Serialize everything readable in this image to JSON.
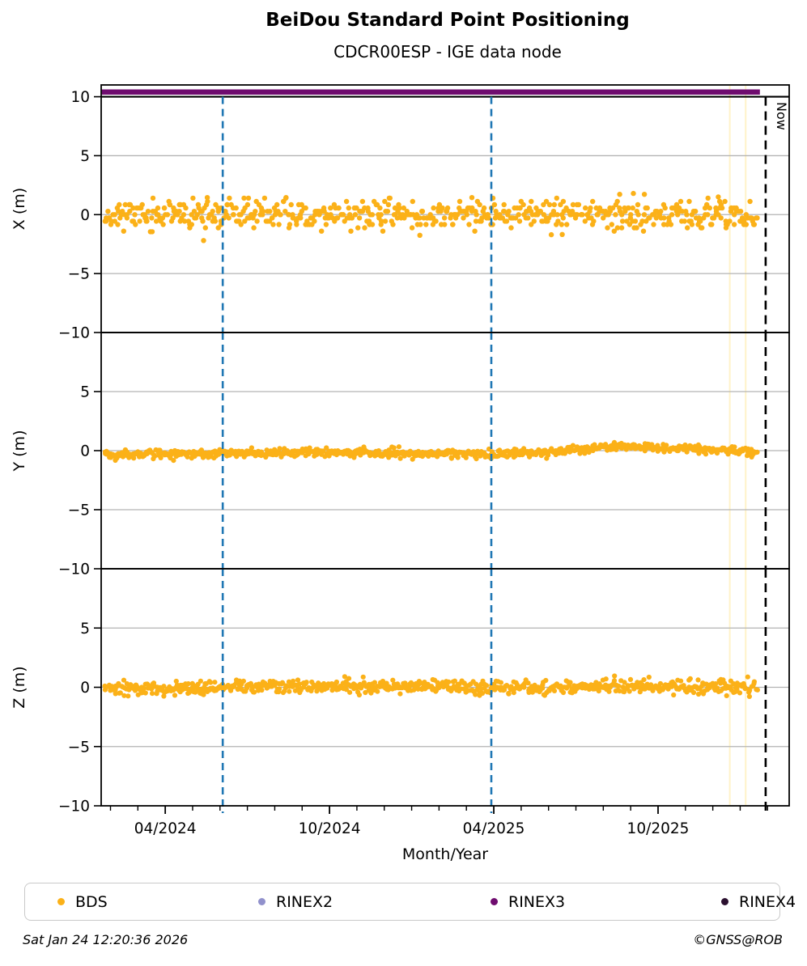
{
  "header": {
    "title": "BeiDou Standard Point Positioning",
    "subtitle": "CDCR00ESP - IGE data node"
  },
  "footer": {
    "timestamp": "Sat Jan 24 12:20:36 2026",
    "credit": "©GNSS@ROB"
  },
  "legend": {
    "items": [
      {
        "label": "BDS",
        "color": "#FBB118"
      },
      {
        "label": "RINEX2",
        "color": "#9191CC"
      },
      {
        "label": "RINEX3",
        "color": "#6F0C6F"
      },
      {
        "label": "RINEX4",
        "color": "#2B1030"
      }
    ]
  },
  "chart_data": {
    "type": "scatter",
    "title": "BeiDou Standard Point Positioning",
    "subtitle": "CDCR00ESP - IGE data node",
    "xlabel": "Month/Year",
    "x_axis": {
      "unit": "months since 2024-01-01",
      "min": 0.66,
      "max": 25.79,
      "major_ticks": [
        {
          "m": 3,
          "label": "04/2024"
        },
        {
          "m": 9,
          "label": "10/2024"
        },
        {
          "m": 15,
          "label": "04/2025"
        },
        {
          "m": 21,
          "label": "10/2025"
        }
      ],
      "minor_tick_step": 1
    },
    "styles": {
      "grid_color": "#B3B3B3",
      "frame_color": "#000000"
    },
    "subplots": [
      {
        "ylabel": "X (m)",
        "ylim": [
          -10,
          11
        ],
        "yticks": [
          {
            "v": 10,
            "label": "10"
          },
          {
            "v": 5,
            "label": "5"
          },
          {
            "v": 0,
            "label": "0"
          },
          {
            "v": -5,
            "label": "−5"
          },
          {
            "v": -10,
            "label": "−10"
          }
        ],
        "gridlines": [
          5,
          0,
          -5
        ],
        "separator_line_y": 10,
        "availability_band": {
          "series": "RINEX3",
          "y": 10.4,
          "x_start": 0.68,
          "x_end": 24.72,
          "color": "#6F0C6F",
          "thickness": 6.5
        },
        "scatter": {
          "series": "BDS",
          "color": "#FBB118",
          "point_radius": 3.2,
          "count": 640,
          "x_start": 0.8,
          "x_end": 24.6,
          "seed": 11,
          "trend": [
            [
              0.8,
              0
            ],
            [
              24.6,
              0
            ]
          ],
          "spread": 0.6,
          "quantize": 0.28,
          "clamp": [
            -1.45,
            1.45
          ],
          "outliers": [
            [
              4.4,
              -2.2
            ],
            [
              12.3,
              -1.75
            ],
            [
              17.1,
              -1.7
            ],
            [
              17.5,
              -1.68
            ],
            [
              19.6,
              1.72
            ],
            [
              20.1,
              1.8
            ],
            [
              20.5,
              1.72
            ],
            [
              23.2,
              1.5
            ]
          ]
        }
      },
      {
        "ylabel": "Y (m)",
        "ylim": [
          -10,
          10
        ],
        "yticks": [
          {
            "v": 5,
            "label": "5"
          },
          {
            "v": 0,
            "label": "0"
          },
          {
            "v": -5,
            "label": "−5"
          },
          {
            "v": -10,
            "label": "−10"
          }
        ],
        "gridlines": [
          5,
          0,
          -5
        ],
        "scatter": {
          "series": "BDS",
          "color": "#FBB118",
          "point_radius": 3.1,
          "count": 760,
          "x_start": 0.8,
          "x_end": 24.6,
          "seed": 22,
          "trend": [
            [
              0.8,
              -0.3
            ],
            [
              3,
              -0.25
            ],
            [
              5,
              -0.3
            ],
            [
              7,
              -0.15
            ],
            [
              9,
              -0.1
            ],
            [
              10.5,
              -0.2
            ],
            [
              12,
              -0.3
            ],
            [
              13.5,
              -0.25
            ],
            [
              15,
              -0.25
            ],
            [
              16.5,
              -0.15
            ],
            [
              18,
              0.05
            ],
            [
              19.3,
              0.35
            ],
            [
              20.5,
              0.3
            ],
            [
              21.5,
              0.2
            ],
            [
              22.5,
              0.1
            ],
            [
              23.5,
              0.05
            ],
            [
              24.6,
              -0.15
            ]
          ],
          "spread": 0.17,
          "quantize": 0,
          "clamp": [
            -0.95,
            0.95
          ],
          "outliers": []
        }
      },
      {
        "ylabel": "Z (m)",
        "ylim": [
          -10,
          10
        ],
        "yticks": [
          {
            "v": 5,
            "label": "5"
          },
          {
            "v": 0,
            "label": "0"
          },
          {
            "v": -5,
            "label": "−5"
          },
          {
            "v": -10,
            "label": "−10"
          }
        ],
        "gridlines": [
          5,
          0,
          -5
        ],
        "scatter": {
          "series": "BDS",
          "color": "#FBB118",
          "point_radius": 3.1,
          "count": 760,
          "x_start": 0.8,
          "x_end": 24.6,
          "seed": 33,
          "trend": [
            [
              0.8,
              -0.05
            ],
            [
              3,
              -0.15
            ],
            [
              5,
              -0.05
            ],
            [
              7,
              0.05
            ],
            [
              9,
              0
            ],
            [
              11,
              0.05
            ],
            [
              12.5,
              0.1
            ],
            [
              14,
              0.05
            ],
            [
              15.5,
              0
            ],
            [
              17,
              -0.05
            ],
            [
              19,
              0.05
            ],
            [
              21,
              0.08
            ],
            [
              23,
              0.02
            ],
            [
              24.6,
              0.1
            ]
          ],
          "spread": 0.28,
          "quantize": 0,
          "clamp": [
            -1.3,
            1.3
          ],
          "outliers": []
        }
      }
    ],
    "annotations": {
      "now_line": {
        "m": 24.93,
        "label": "Now",
        "color": "#000000",
        "style": "dashed"
      },
      "event_lines": {
        "color": "#1F77B4",
        "style": "dashed",
        "months": [
          5.1,
          14.91
        ]
      },
      "gap_lines": {
        "color": "#FFF3C9",
        "months": [
          23.62,
          24.2
        ]
      }
    }
  }
}
